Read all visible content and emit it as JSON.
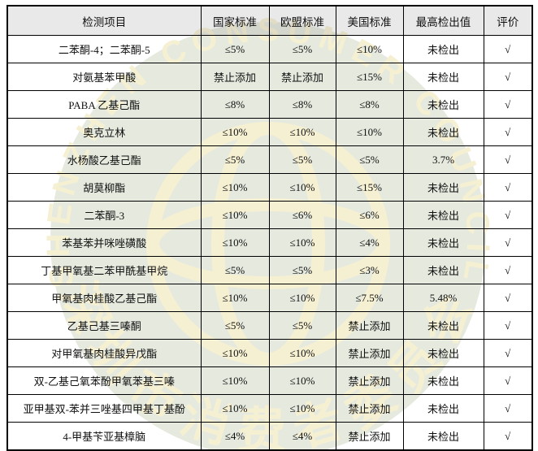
{
  "colors": {
    "highlight_orange": "#ED7D31",
    "header_gray": "#E9E9E9",
    "watermark_green": "#E5E9DE",
    "watermark_cream": "#F6F0D3",
    "border_black": "#000000"
  },
  "watermark": {
    "ring_text": "SHENZHEN CONSUMER COUNCIL",
    "bottom_text": "深圳市消费者委员会",
    "emblem": "globe-icon"
  },
  "table": {
    "headers": [
      "检测项目",
      "国家标准",
      "欧盟标准",
      "美国标准",
      "最高检出值",
      "评价"
    ],
    "rows": [
      {
        "item": "二苯酮-4；二苯酮-5",
        "national": "≤5%",
        "eu": "≤5%",
        "us": "≤10%",
        "us_highlighted": false,
        "detected": "未检出",
        "evaluation": "√"
      },
      {
        "item": "对氨基苯甲酸",
        "national": "禁止添加",
        "eu": "禁止添加",
        "us": "≤15%",
        "us_highlighted": false,
        "detected": "未检出",
        "evaluation": "√"
      },
      {
        "item": "PABA 乙基己酯",
        "national": "≤8%",
        "eu": "≤8%",
        "us": "≤8%",
        "us_highlighted": false,
        "detected": "未检出",
        "evaluation": "√"
      },
      {
        "item": "奥克立林",
        "national": "≤10%",
        "eu": "≤10%",
        "us": "≤10%",
        "us_highlighted": false,
        "detected": "未检出",
        "evaluation": "√"
      },
      {
        "item": "水杨酸乙基己酯",
        "national": "≤5%",
        "eu": "≤5%",
        "us": "≤5%",
        "us_highlighted": false,
        "detected": "3.7%",
        "evaluation": "√"
      },
      {
        "item": "胡莫柳酯",
        "national": "≤10%",
        "eu": "≤10%",
        "us": "≤15%",
        "us_highlighted": false,
        "detected": "未检出",
        "evaluation": "√"
      },
      {
        "item": "二苯酮-3",
        "national": "≤10%",
        "eu": "≤6%",
        "us": "≤6%",
        "us_highlighted": true,
        "detected": "未检出",
        "evaluation": "√"
      },
      {
        "item": "苯基苯并咪唑磺酸",
        "national": "≤10%",
        "eu": "≤10%",
        "us": "≤4%",
        "us_highlighted": true,
        "detected": "未检出",
        "evaluation": "√"
      },
      {
        "item": "丁基甲氧基二苯甲酰基甲烷",
        "national": "≤5%",
        "eu": "≤5%",
        "us": "≤3%",
        "us_highlighted": true,
        "detected": "未检出",
        "evaluation": "√"
      },
      {
        "item": "甲氧基肉桂酸乙基己酯",
        "national": "≤10%",
        "eu": "≤10%",
        "us": "≤7.5%",
        "us_highlighted": true,
        "detected": "5.48%",
        "evaluation": "√"
      },
      {
        "item": "乙基己基三嗪酮",
        "national": "≤5%",
        "eu": "≤5%",
        "us": "禁止添加",
        "us_highlighted": true,
        "detected": "未检出",
        "evaluation": "√"
      },
      {
        "item": "对甲氧基肉桂酸异戊酯",
        "national": "≤10%",
        "eu": "≤10%",
        "us": "禁止添加",
        "us_highlighted": true,
        "detected": "未检出",
        "evaluation": "√"
      },
      {
        "item": "双-乙基己氧苯酚甲氧苯基三嗪",
        "national": "≤10%",
        "eu": "≤10%",
        "us": "禁止添加",
        "us_highlighted": true,
        "detected": "未检出",
        "evaluation": "√"
      },
      {
        "item": "亚甲基双-苯并三唑基四甲基丁基酚",
        "national": "≤10%",
        "eu": "≤10%",
        "us": "禁止添加",
        "us_highlighted": true,
        "detected": "未检出",
        "evaluation": "√"
      },
      {
        "item": "4-甲基苄亚基樟脑",
        "national": "≤4%",
        "eu": "≤4%",
        "us": "禁止添加",
        "us_highlighted": true,
        "detected": "未检出",
        "evaluation": "√"
      }
    ]
  }
}
